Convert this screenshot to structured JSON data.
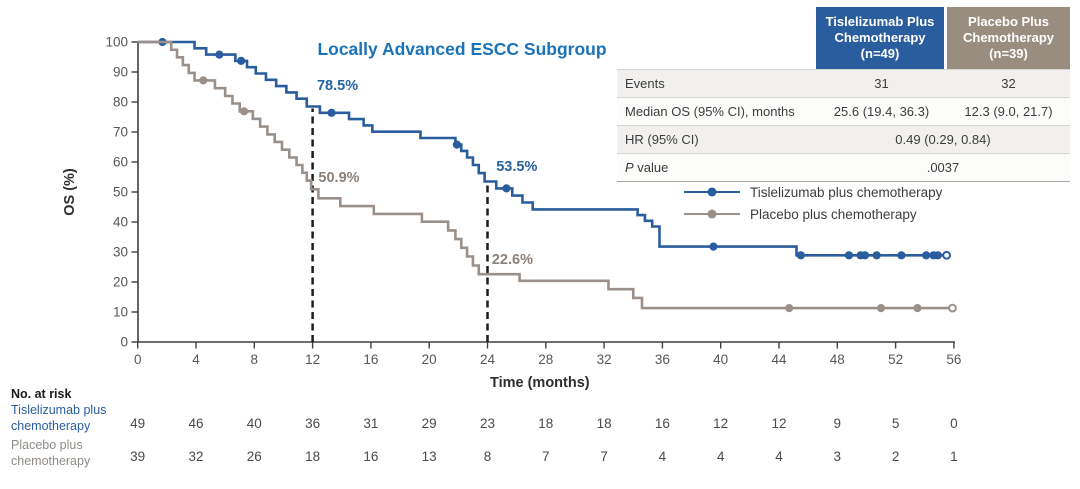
{
  "chart_data": {
    "type": "line",
    "subtype": "kaplan-meier-step",
    "title": "Locally Advanced ESCC Subgroup",
    "xlabel": "Time (months)",
    "ylabel": "OS (%)",
    "xlim": [
      0,
      56
    ],
    "ylim": [
      0,
      100
    ],
    "xticks": [
      0,
      4,
      8,
      12,
      16,
      20,
      24,
      28,
      32,
      36,
      40,
      44,
      48,
      52,
      56
    ],
    "yticks": [
      0,
      10,
      20,
      30,
      40,
      50,
      60,
      70,
      80,
      90,
      100
    ],
    "grid": false,
    "legend_position": "right-middle",
    "series": [
      {
        "name": "Tislelizumab plus chemotherapy",
        "color": "#2a5d9e",
        "steps": [
          [
            0,
            100
          ],
          [
            3.9,
            97.9
          ],
          [
            4.7,
            95.8
          ],
          [
            6.7,
            93.7
          ],
          [
            7.5,
            91.6
          ],
          [
            8.1,
            89.5
          ],
          [
            8.8,
            87.4
          ],
          [
            9.5,
            85.3
          ],
          [
            10.2,
            83.2
          ],
          [
            10.9,
            81.1
          ],
          [
            11.6,
            78.5
          ],
          [
            12.5,
            76.4
          ],
          [
            14.5,
            74.3
          ],
          [
            15.5,
            72.2
          ],
          [
            16.1,
            70.1
          ],
          [
            19.4,
            68.0
          ],
          [
            21.8,
            65.8
          ],
          [
            22.2,
            63.7
          ],
          [
            22.6,
            61.5
          ],
          [
            23.0,
            59.0
          ],
          [
            23.4,
            56.3
          ],
          [
            23.8,
            53.5
          ],
          [
            24.6,
            51.2
          ],
          [
            25.7,
            48.8
          ],
          [
            26.4,
            46.5
          ],
          [
            27.1,
            44.2
          ],
          [
            34.3,
            42.3
          ],
          [
            34.8,
            40.4
          ],
          [
            35.3,
            38.5
          ],
          [
            35.8,
            31.8
          ],
          [
            45.2,
            28.9
          ]
        ],
        "end_time": 55.5,
        "censor_times": [
          1.7,
          5.6,
          7.1,
          13.3,
          21.9,
          25.3,
          39.5,
          45.5,
          48.8,
          49.6,
          49.9,
          50.7,
          52.4,
          54.1,
          54.6,
          54.9
        ],
        "open_circle_at_end": true
      },
      {
        "name": "Placebo plus chemotherapy",
        "color": "#9a9089",
        "steps": [
          [
            0,
            100
          ],
          [
            2.3,
            97.4
          ],
          [
            2.7,
            94.9
          ],
          [
            3.1,
            92.3
          ],
          [
            3.5,
            89.7
          ],
          [
            3.9,
            87.2
          ],
          [
            5.3,
            84.6
          ],
          [
            6.0,
            82.0
          ],
          [
            6.5,
            79.5
          ],
          [
            7.0,
            76.9
          ],
          [
            7.9,
            74.4
          ],
          [
            8.4,
            71.8
          ],
          [
            8.9,
            69.2
          ],
          [
            9.4,
            66.7
          ],
          [
            9.9,
            64.1
          ],
          [
            10.4,
            61.5
          ],
          [
            10.9,
            59.0
          ],
          [
            11.3,
            56.4
          ],
          [
            11.6,
            53.8
          ],
          [
            11.9,
            50.9
          ],
          [
            12.4,
            47.9
          ],
          [
            13.9,
            45.3
          ],
          [
            16.2,
            42.7
          ],
          [
            19.5,
            40.1
          ],
          [
            21.3,
            37.2
          ],
          [
            21.8,
            34.3
          ],
          [
            22.2,
            31.4
          ],
          [
            22.6,
            28.5
          ],
          [
            23.0,
            25.5
          ],
          [
            23.4,
            22.6
          ],
          [
            26.2,
            20.4
          ],
          [
            32.3,
            17.6
          ],
          [
            34.0,
            14.7
          ],
          [
            34.6,
            11.3
          ]
        ],
        "end_time": 55.9,
        "censor_times": [
          4.5,
          7.3,
          44.7,
          51.0,
          53.5
        ],
        "open_circle_at_end": true
      }
    ],
    "reference_lines": [
      {
        "x": 12,
        "y_top": 78.5,
        "style": "dashed",
        "color": "#1c1c1c"
      },
      {
        "x": 24,
        "y_top": 53.5,
        "style": "dashed",
        "color": "#1c1c1c"
      }
    ],
    "annotations": [
      {
        "text": "78.5%",
        "x_month": 12.3,
        "y_pct": 84.0,
        "color": "#2563a3"
      },
      {
        "text": "50.9%",
        "x_month": 12.4,
        "y_pct": 53.3,
        "color": "#8b8178"
      },
      {
        "text": "53.5%",
        "x_month": 24.6,
        "y_pct": 57.0,
        "color": "#2563a3"
      },
      {
        "text": "22.6%",
        "x_month": 24.3,
        "y_pct": 26.0,
        "color": "#8b8178"
      }
    ]
  },
  "results_table": {
    "col_headers": [
      {
        "label": "Tislelizumab Plus\nChemotherapy\n(n=49)",
        "color": "#2a5d9e"
      },
      {
        "label": "Placebo Plus\nChemotherapy\n(n=39)",
        "color": "#998d80"
      }
    ],
    "rows": [
      {
        "label": "Events",
        "values": [
          "31",
          "32"
        ]
      },
      {
        "label": "Median OS (95% CI), months",
        "values": [
          "25.6 (19.4, 36.3)",
          "12.3 (9.0, 21.7)"
        ]
      },
      {
        "label": "HR (95% CI)",
        "merged_value": "0.49 (0.29, 0.84)"
      },
      {
        "label": "P value",
        "merged_value": ".0037"
      }
    ]
  },
  "at_risk": {
    "heading": "No. at risk",
    "rows": [
      {
        "label": "Tislelizumab plus\nchemotherapy",
        "color": "#2a5d9e",
        "counts": [
          49,
          46,
          40,
          36,
          31,
          29,
          23,
          18,
          18,
          16,
          12,
          12,
          9,
          5,
          0
        ]
      },
      {
        "label": "Placebo plus\nchemotherapy",
        "color": "#8f8b87",
        "counts": [
          39,
          32,
          26,
          18,
          16,
          13,
          8,
          7,
          7,
          4,
          4,
          4,
          3,
          2,
          1
        ]
      }
    ]
  }
}
